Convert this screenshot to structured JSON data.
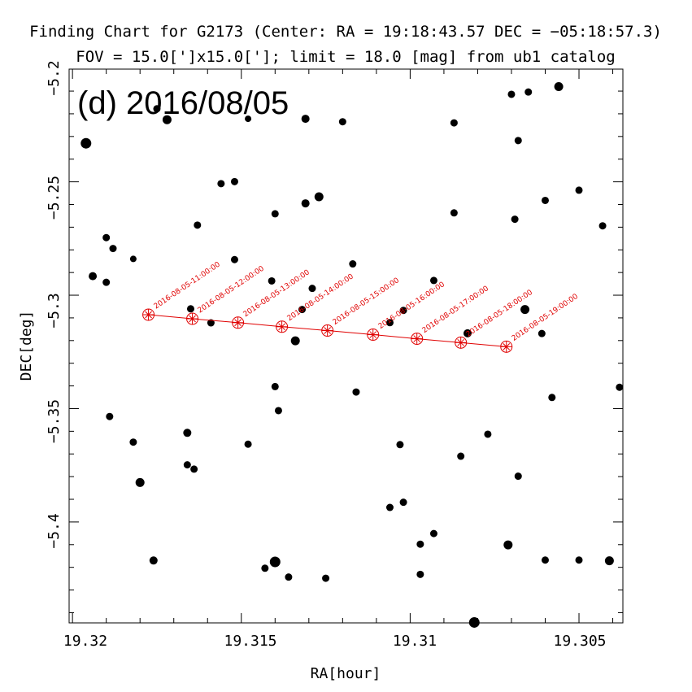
{
  "header": {
    "title_line1": "Finding Chart for G2173 (Center: RA = 19:18:43.57 DEC = −05:18:57.3)",
    "title_line2": "FOV = 15.0[']x15.0[']; limit = 18.0 [mag] from ub1 catalog",
    "date_label": "(d) 2016/08/05"
  },
  "chart_data": {
    "type": "scatter",
    "xlabel": "RA[hour]",
    "ylabel": "DEC[deg]",
    "xlim": [
      19.3201,
      19.3037
    ],
    "ylim": [
      -5.4445,
      -5.2003
    ],
    "x_reversed": true,
    "x_ticks": [
      "19.32",
      "19.315",
      "19.31",
      "19.305"
    ],
    "y_ticks": [
      "−5.2",
      "−5.25",
      "−5.3",
      "−5.35",
      "−5.4"
    ],
    "grid": false,
    "colors": {
      "stars": "#000000",
      "track": "#e00000"
    },
    "stars": [
      {
        "ra": 19.3196,
        "dec": -5.233,
        "r": 6.5
      },
      {
        "ra": 19.3194,
        "dec": -5.2916,
        "r": 5
      },
      {
        "ra": 19.319,
        "dec": -5.2746,
        "r": 4.5
      },
      {
        "ra": 19.319,
        "dec": -5.2943,
        "r": 4.5
      },
      {
        "ra": 19.3189,
        "dec": -5.3535,
        "r": 4.5
      },
      {
        "ra": 19.3188,
        "dec": -5.2794,
        "r": 4.5
      },
      {
        "ra": 19.3182,
        "dec": -5.284,
        "r": 4
      },
      {
        "ra": 19.3182,
        "dec": -5.3648,
        "r": 4.5
      },
      {
        "ra": 19.318,
        "dec": -5.3826,
        "r": 5.5
      },
      {
        "ra": 19.3176,
        "dec": -5.417,
        "r": 5
      },
      {
        "ra": 19.3175,
        "dec": -5.2178,
        "r": 4.5
      },
      {
        "ra": 19.3172,
        "dec": -5.2226,
        "r": 5.5
      },
      {
        "ra": 19.3166,
        "dec": -5.3748,
        "r": 4.5
      },
      {
        "ra": 19.3166,
        "dec": -5.3607,
        "r": 5
      },
      {
        "ra": 19.3165,
        "dec": -5.306,
        "r": 4.5
      },
      {
        "ra": 19.3164,
        "dec": -5.3767,
        "r": 4.5
      },
      {
        "ra": 19.3163,
        "dec": -5.2691,
        "r": 4.5
      },
      {
        "ra": 19.3159,
        "dec": -5.3122,
        "r": 4.5
      },
      {
        "ra": 19.3156,
        "dec": -5.2508,
        "r": 4.5
      },
      {
        "ra": 19.3152,
        "dec": -5.2499,
        "r": 4.5
      },
      {
        "ra": 19.3152,
        "dec": -5.2843,
        "r": 4.5
      },
      {
        "ra": 19.3148,
        "dec": -5.2222,
        "r": 4
      },
      {
        "ra": 19.3148,
        "dec": -5.3657,
        "r": 4.5
      },
      {
        "ra": 19.3143,
        "dec": -5.4204,
        "r": 4.5
      },
      {
        "ra": 19.3141,
        "dec": -5.2937,
        "r": 4.5
      },
      {
        "ra": 19.314,
        "dec": -5.4176,
        "r": 6.5
      },
      {
        "ra": 19.314,
        "dec": -5.2641,
        "r": 4.5
      },
      {
        "ra": 19.314,
        "dec": -5.3403,
        "r": 4.5
      },
      {
        "ra": 19.3139,
        "dec": -5.3509,
        "r": 4.5
      },
      {
        "ra": 19.3136,
        "dec": -5.4243,
        "r": 4.5
      },
      {
        "ra": 19.3134,
        "dec": -5.3201,
        "r": 5.5
      },
      {
        "ra": 19.3132,
        "dec": -5.3063,
        "r": 4.5
      },
      {
        "ra": 19.3131,
        "dec": -5.2595,
        "r": 5
      },
      {
        "ra": 19.3131,
        "dec": -5.2222,
        "r": 5
      },
      {
        "ra": 19.3129,
        "dec": -5.297,
        "r": 4.5
      },
      {
        "ra": 19.3127,
        "dec": -5.2566,
        "r": 5.5
      },
      {
        "ra": 19.3125,
        "dec": -5.4248,
        "r": 4.5
      },
      {
        "ra": 19.3117,
        "dec": -5.2862,
        "r": 4.5
      },
      {
        "ra": 19.3116,
        "dec": -5.3427,
        "r": 4.5
      },
      {
        "ra": 19.312,
        "dec": -5.2235,
        "r": 4.5
      },
      {
        "ra": 19.3106,
        "dec": -5.3121,
        "r": 4.5
      },
      {
        "ra": 19.3106,
        "dec": -5.3936,
        "r": 4.5
      },
      {
        "ra": 19.3103,
        "dec": -5.3659,
        "r": 4.5
      },
      {
        "ra": 19.3102,
        "dec": -5.3913,
        "r": 4.5
      },
      {
        "ra": 19.3102,
        "dec": -5.3067,
        "r": 4.5
      },
      {
        "ra": 19.3097,
        "dec": -5.4231,
        "r": 4.5
      },
      {
        "ra": 19.3097,
        "dec": -5.4098,
        "r": 4.5
      },
      {
        "ra": 19.3093,
        "dec": -5.2935,
        "r": 4.5
      },
      {
        "ra": 19.3093,
        "dec": -5.4051,
        "r": 4.5
      },
      {
        "ra": 19.3087,
        "dec": -5.2637,
        "r": 4.5
      },
      {
        "ra": 19.3087,
        "dec": -5.224,
        "r": 4.5
      },
      {
        "ra": 19.3085,
        "dec": -5.371,
        "r": 4.5
      },
      {
        "ra": 19.3083,
        "dec": -5.3168,
        "r": 5
      },
      {
        "ra": 19.3081,
        "dec": -5.4443,
        "r": 6.5
      },
      {
        "ra": 19.3077,
        "dec": -5.3613,
        "r": 4.5
      },
      {
        "ra": 19.3071,
        "dec": -5.4101,
        "r": 5.5
      },
      {
        "ra": 19.307,
        "dec": -5.2114,
        "r": 4.5
      },
      {
        "ra": 19.3069,
        "dec": -5.2665,
        "r": 4.5
      },
      {
        "ra": 19.3068,
        "dec": -5.2318,
        "r": 4.5
      },
      {
        "ra": 19.3068,
        "dec": -5.3798,
        "r": 4.5
      },
      {
        "ra": 19.3066,
        "dec": -5.3063,
        "r": 5.5
      },
      {
        "ra": 19.3065,
        "dec": -5.2104,
        "r": 4.5
      },
      {
        "ra": 19.3061,
        "dec": -5.3169,
        "r": 4.5
      },
      {
        "ra": 19.306,
        "dec": -5.2582,
        "r": 4.5
      },
      {
        "ra": 19.306,
        "dec": -5.4168,
        "r": 4.5
      },
      {
        "ra": 19.3058,
        "dec": -5.3451,
        "r": 4.5
      },
      {
        "ra": 19.3056,
        "dec": -5.208,
        "r": 5.5
      },
      {
        "ra": 19.305,
        "dec": -5.4168,
        "r": 4.5
      },
      {
        "ra": 19.305,
        "dec": -5.2537,
        "r": 4.5
      },
      {
        "ra": 19.3043,
        "dec": -5.2694,
        "r": 4.5
      },
      {
        "ra": 19.3041,
        "dec": -5.4171,
        "r": 5.5
      },
      {
        "ra": 19.3038,
        "dec": -5.3406,
        "r": 4.5
      }
    ],
    "track": [
      {
        "label": "2016-08-05-11:00:00",
        "ra": 19.31775,
        "dec": -5.3086
      },
      {
        "label": "2016-08-05-12:00:00",
        "ra": 19.31645,
        "dec": -5.3104
      },
      {
        "label": "2016-08-05-13:00:00",
        "ra": 19.3151,
        "dec": -5.3121
      },
      {
        "label": "2016-08-05-14:00:00",
        "ra": 19.3138,
        "dec": -5.3139
      },
      {
        "label": "2016-08-05-15:00:00",
        "ra": 19.31245,
        "dec": -5.3156
      },
      {
        "label": "2016-08-05-16:00:00",
        "ra": 19.3111,
        "dec": -5.3174
      },
      {
        "label": "2016-08-05-17:00:00",
        "ra": 19.3098,
        "dec": -5.3192
      },
      {
        "label": "2016-08-05-18:00:00",
        "ra": 19.3085,
        "dec": -5.3209
      },
      {
        "label": "2016-08-05-19:00:00",
        "ra": 19.30715,
        "dec": -5.3227
      }
    ]
  }
}
